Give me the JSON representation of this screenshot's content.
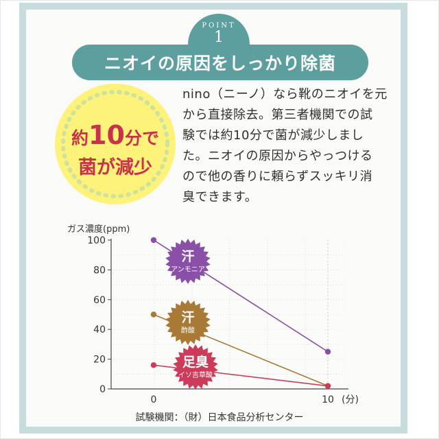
{
  "colors": {
    "panel_border": "#c7dcdd",
    "teal": "#5d9e9e",
    "badge_yellow": "#fdf27a",
    "badge_red": "#c8324a",
    "ammonia": "#8a4fa6",
    "acetic": "#a87a36",
    "isovaleric": "#cc3c5a"
  },
  "header": {
    "point_label": "POINT",
    "point_number": "1",
    "title": "ニオイの原因をしっかり除菌"
  },
  "badge": {
    "prefix": "約",
    "number": "10",
    "suffix": "分で",
    "line2": "菌が減少"
  },
  "description": {
    "lines": [
      "nino（ニーノ）なら靴のニオイを元",
      "から直接除去。第三者機関での試",
      "験では約10分で菌が減少しまし",
      "た。ニオイの原因からやっつける",
      "ので他の香りに頼らずスッキリ消",
      "臭できます。"
    ]
  },
  "chart_data": {
    "type": "line",
    "ylabel": "ガス濃度(ppm)",
    "xlabel": "(分)",
    "x": [
      0,
      10
    ],
    "xticks": [
      "0",
      "10"
    ],
    "yticks": [
      0,
      20,
      40,
      60,
      80,
      100
    ],
    "ylim": [
      0,
      100
    ],
    "grid": true,
    "series": [
      {
        "name": "汗",
        "sub": "アンモニア",
        "values": [
          100,
          25
        ],
        "color": "#8a4fa6",
        "label_bg": "#8a4fa6"
      },
      {
        "name": "汗",
        "sub": "酢酸",
        "values": [
          50,
          2
        ],
        "color": "#a87a36",
        "label_bg": "#a87a36"
      },
      {
        "name": "足臭",
        "sub": "イソ吉草酸",
        "values": [
          16,
          2
        ],
        "color": "#cc3c5a",
        "label_bg": "#cc3c5a"
      }
    ]
  },
  "footer": {
    "source": "試験機関：（財）日本食品分析センター"
  }
}
